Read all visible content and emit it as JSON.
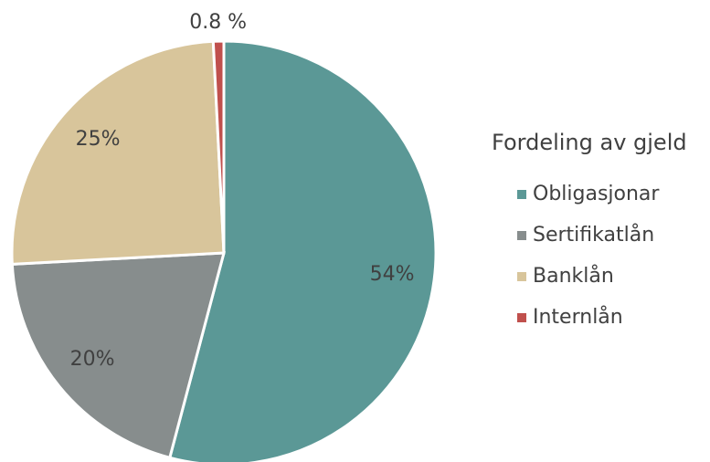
{
  "chart_data": {
    "type": "pie",
    "legend_title": "Fordeling av gjeld",
    "categories": [
      "Obligasjonar",
      "Sertifikatlån",
      "Banklån",
      "Internlån"
    ],
    "values": [
      54,
      20,
      25,
      0.8
    ],
    "value_labels": [
      "54%",
      "20%",
      "25%",
      "0.8 %"
    ],
    "colors": [
      "#5b9896",
      "#878d8d",
      "#d8c59b",
      "#c0504d"
    ],
    "legend": "right"
  }
}
